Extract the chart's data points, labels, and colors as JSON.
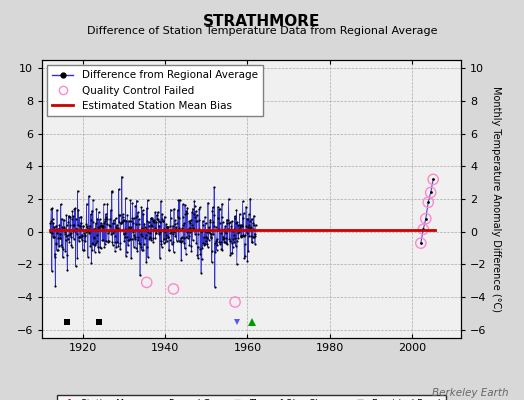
{
  "title": "STRATHMORE",
  "subtitle": "Difference of Station Temperature Data from Regional Average",
  "ylabel_right": "Monthly Temperature Anomaly Difference (°C)",
  "background_color": "#d8d8d8",
  "plot_bg_color": "#f0f0f0",
  "xlim": [
    1910,
    2012
  ],
  "ylim": [
    -6.5,
    10.5
  ],
  "yticks": [
    -6,
    -4,
    -2,
    0,
    2,
    4,
    6,
    8,
    10
  ],
  "xticks": [
    1920,
    1940,
    1960,
    1980,
    2000
  ],
  "seed": 42,
  "mean_bias": 0.1,
  "seg1_start": 1912.0,
  "seg1_end": 1962.0,
  "seg2_years": [
    2002.2,
    2002.8,
    2003.4,
    2004.0,
    2004.6,
    2005.2
  ],
  "seg2_vals": [
    -0.7,
    0.15,
    0.8,
    1.8,
    2.4,
    3.2
  ],
  "empirical_breaks": [
    1916,
    1924
  ],
  "record_gap_x": 1961.0,
  "record_gap_y": -5.5,
  "time_obs_changes": [
    1957.5
  ],
  "qc_in_seg1_years": [
    1935.5,
    1942.0,
    1957.0
  ],
  "qc_in_seg1_vals": [
    -3.1,
    -3.5,
    -4.3
  ],
  "watermark": "Berkeley Earth",
  "line_color": "#3333cc",
  "bias_color": "#cc0000",
  "qc_color": "#ff88cc",
  "marker_bottom_y": -5.5,
  "title_fontsize": 11,
  "subtitle_fontsize": 8,
  "tick_fontsize": 8,
  "legend_fontsize": 7.5,
  "watermark_fontsize": 7.5
}
